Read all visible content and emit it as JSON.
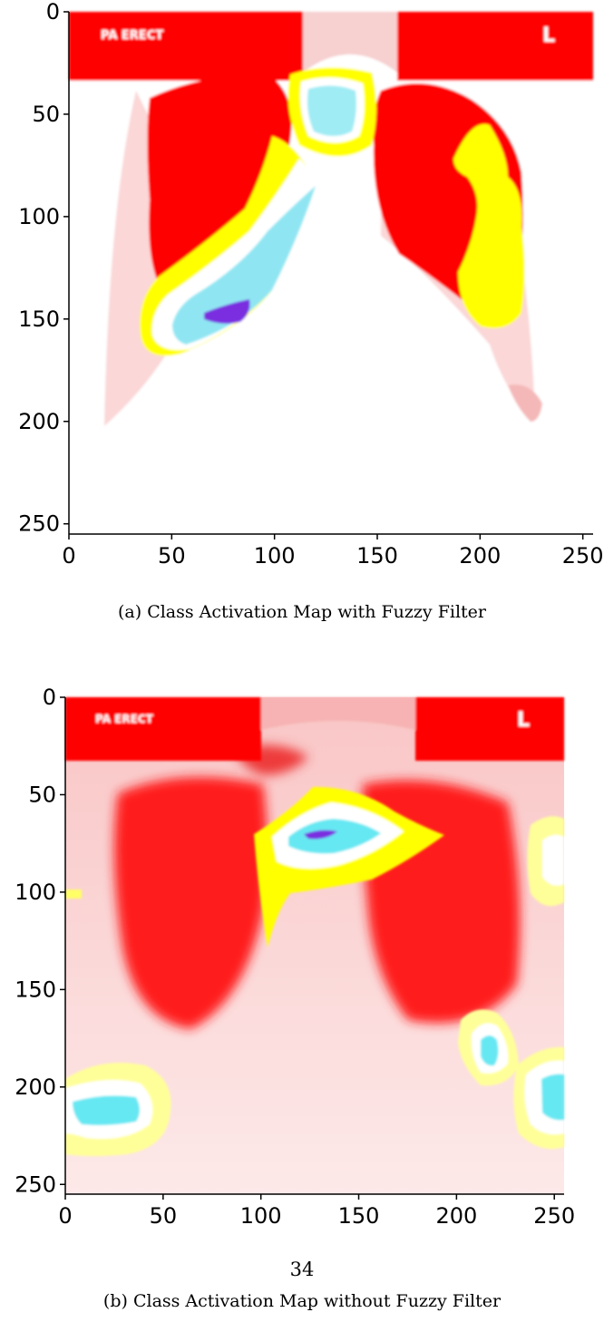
{
  "figures": [
    {
      "id": "a",
      "caption": "(a) Class Activation Map with Fuzzy Filter",
      "image_text": {
        "view_label": "PA ERECT",
        "side_marker": "L"
      },
      "x_ticks": [
        "0",
        "50",
        "100",
        "150",
        "200",
        "250"
      ],
      "y_ticks": [
        "0",
        "50",
        "100",
        "150",
        "200",
        "250"
      ]
    },
    {
      "id": "b",
      "caption": "(b) Class Activation Map without Fuzzy Filter",
      "image_text": {
        "view_label": "PA ERECT",
        "side_marker": "L"
      },
      "x_ticks": [
        "0",
        "50",
        "100",
        "150",
        "200",
        "250"
      ],
      "y_ticks": [
        "0",
        "50",
        "100",
        "150",
        "200",
        "250"
      ]
    }
  ],
  "page_number": "34",
  "colors": {
    "activation_high": "#ff0000",
    "activation_mid": "#ffff00",
    "activation_low": "#66e8f2",
    "activation_peak": "#7a2ee0",
    "background": "#ffffff"
  },
  "chart_data": [
    {
      "type": "heatmap",
      "title": "",
      "xlabel": "",
      "ylabel": "",
      "xlim": [
        0,
        255
      ],
      "ylim": [
        255,
        0
      ],
      "xticks": [
        0,
        50,
        100,
        150,
        200,
        250
      ],
      "yticks": [
        0,
        50,
        100,
        150,
        200,
        250
      ],
      "grid": false
    },
    {
      "type": "heatmap",
      "title": "",
      "xlabel": "",
      "ylabel": "",
      "xlim": [
        0,
        255
      ],
      "ylim": [
        255,
        0
      ],
      "xticks": [
        0,
        50,
        100,
        150,
        200,
        250
      ],
      "yticks": [
        0,
        50,
        100,
        150,
        200,
        250
      ],
      "grid": false
    }
  ]
}
